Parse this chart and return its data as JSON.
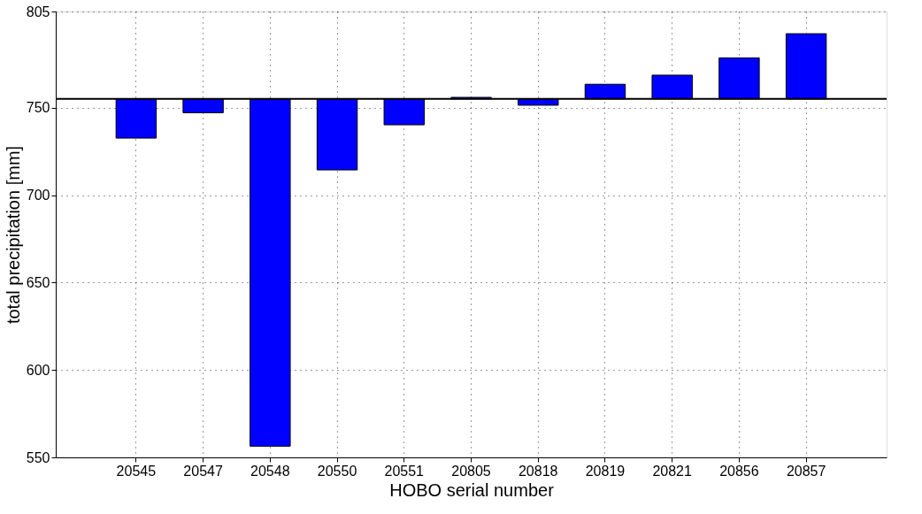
{
  "chart_data": {
    "type": "bar",
    "xlabel": "HOBO serial number",
    "ylabel": "total precipitation [mm]",
    "categories": [
      "20545",
      "20547",
      "20548",
      "20550",
      "20551",
      "20805",
      "20818",
      "20819",
      "20821",
      "20856",
      "20857"
    ],
    "base": [
      755,
      755,
      755,
      755,
      755,
      755,
      755,
      755,
      755,
      755,
      755
    ],
    "values": [
      -22.4,
      -7.9,
      -198.6,
      -40.6,
      -14.8,
      0.9,
      -3.6,
      8.4,
      13.6,
      23.5,
      37.3
    ],
    "color": "#0000ff",
    "ylim": [
      550,
      805
    ],
    "yticks": [
      550,
      600,
      650,
      700,
      750,
      805
    ],
    "ref_lines": [
      {
        "axis": "y",
        "value": 755,
        "color": "#000000",
        "line_style": "solid"
      }
    ],
    "grid": true
  }
}
